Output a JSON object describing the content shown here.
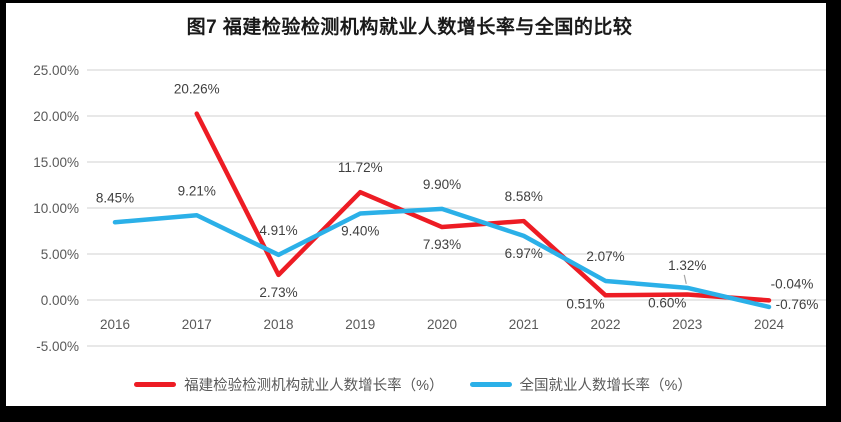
{
  "window": {
    "background": "#ffffff",
    "frame_color": "#000000"
  },
  "styles": {
    "gridline_color": "#d9d9d9",
    "tick_label_color": "#595959",
    "data_label_color": "#3f3f3f",
    "leader_line_color": "#a6a6a6",
    "legend_text_color": "#595959",
    "title_color": "#1a1a1a"
  },
  "chart_data": {
    "type": "line",
    "title": "图7  福建检验检测机构就业人数增长率与全国的比较",
    "categories": [
      "2016",
      "2017",
      "2018",
      "2019",
      "2020",
      "2021",
      "2022",
      "2023",
      "2024"
    ],
    "grid": true,
    "legend_position": "bottom",
    "y_axis": {
      "min": -5,
      "max": 25,
      "tick_step": 5,
      "ticks": [
        {
          "value": 25,
          "label": "25.00%"
        },
        {
          "value": 20,
          "label": "20.00%"
        },
        {
          "value": 15,
          "label": "15.00%"
        },
        {
          "value": 10,
          "label": "10.00%"
        },
        {
          "value": 5,
          "label": "5.00%"
        },
        {
          "value": 0,
          "label": "0.00%"
        },
        {
          "value": -5,
          "label": "-5.00%"
        }
      ]
    },
    "series": [
      {
        "name": "福建检验检测机构就业人数增长率（%）",
        "color": "#ed1c24",
        "values": [
          null,
          20.26,
          2.73,
          11.72,
          7.93,
          8.58,
          0.51,
          0.6,
          -0.04
        ],
        "labels": [
          "",
          "20.26%",
          "2.73%",
          "11.72%",
          "7.93%",
          "8.58%",
          "0.51%",
          "0.60%",
          "-0.04%"
        ],
        "label_positions": [
          "none",
          "above",
          "below",
          "above",
          "below",
          "above",
          "below-tight",
          "below-tight",
          "end-above"
        ]
      },
      {
        "name": "全国就业人数增长率（%）",
        "color": "#2bb0e8",
        "values": [
          8.45,
          9.21,
          4.91,
          9.4,
          9.9,
          6.97,
          2.07,
          1.32,
          -0.76
        ],
        "labels": [
          "8.45%",
          "9.21%",
          "4.91%",
          "9.40%",
          "9.90%",
          "6.97%",
          "2.07%",
          "1.32%",
          "-0.76%"
        ],
        "label_positions": [
          "above",
          "above",
          "above",
          "below",
          "above",
          "below",
          "above",
          "above-leader",
          "end-right"
        ]
      }
    ]
  }
}
